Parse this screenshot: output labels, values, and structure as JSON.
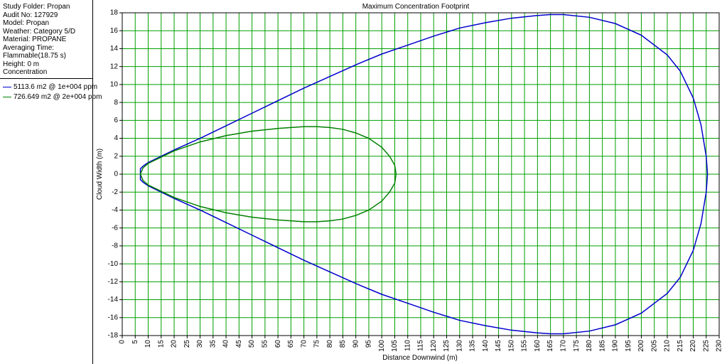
{
  "panel": {
    "info": [
      "Study Folder: Propan",
      "Audit No: 127929",
      "Model: Propan",
      "Weather: Category 5/D",
      "Material: PROPANE",
      "Averaging Time:",
      "Flammable(18.75 s)",
      "Height: 0 m",
      "Concentration"
    ]
  },
  "chart_data": {
    "type": "line",
    "title": "Maximum Concentration Footprint",
    "x_label": "Distance Downwind (m)",
    "y_label": "Cloud Width (m)",
    "xlim": [
      0,
      230
    ],
    "ylim": [
      -18,
      18
    ],
    "xticks": [
      0,
      5,
      10,
      15,
      20,
      25,
      30,
      35,
      40,
      45,
      50,
      55,
      60,
      65,
      70,
      75,
      80,
      85,
      90,
      95,
      100,
      105,
      110,
      115,
      120,
      125,
      130,
      135,
      140,
      145,
      150,
      155,
      160,
      165,
      170,
      175,
      180,
      185,
      190,
      195,
      200,
      205,
      210,
      215,
      220,
      225,
      230
    ],
    "yticks": [
      -18,
      -16,
      -14,
      -12,
      -10,
      -8,
      -6,
      -4,
      -2,
      0,
      2,
      4,
      6,
      8,
      10,
      12,
      14,
      16,
      18
    ],
    "grid": true,
    "grid_color": "#00a000",
    "series": [
      {
        "name": "5113.6 m2 @ 1e+004 ppm",
        "color": "#0000cc",
        "x": [
          7,
          7,
          8,
          10,
          15,
          20,
          30,
          40,
          50,
          60,
          70,
          80,
          90,
          100,
          110,
          120,
          130,
          140,
          150,
          160,
          165,
          170,
          180,
          190,
          200,
          210,
          215,
          220,
          223,
          225,
          225.5,
          225,
          223,
          220,
          215,
          210,
          200,
          190,
          180,
          170,
          165,
          160,
          150,
          140,
          130,
          120,
          110,
          100,
          90,
          80,
          70,
          60,
          50,
          40,
          30,
          20,
          15,
          10,
          8,
          7,
          7
        ],
        "values": [
          0,
          0.6,
          0.9,
          1.3,
          2.0,
          2.7,
          4.0,
          5.4,
          6.8,
          8.2,
          9.6,
          10.9,
          12.2,
          13.4,
          14.4,
          15.4,
          16.3,
          16.9,
          17.4,
          17.7,
          17.8,
          17.8,
          17.5,
          16.8,
          15.5,
          13.3,
          11.5,
          8.5,
          5.5,
          2,
          0,
          -2,
          -5.5,
          -8.5,
          -11.5,
          -13.3,
          -15.5,
          -16.8,
          -17.5,
          -17.8,
          -17.8,
          -17.7,
          -17.4,
          -16.9,
          -16.3,
          -15.4,
          -14.4,
          -13.4,
          -12.2,
          -10.9,
          -9.6,
          -8.2,
          -6.8,
          -5.4,
          -4.0,
          -2.7,
          -2.0,
          -1.3,
          -0.9,
          -0.6,
          0
        ]
      },
      {
        "name": "726.649 m2 @ 2e+004 ppm",
        "color": "#008000",
        "x": [
          7,
          8,
          10,
          20,
          30,
          40,
          50,
          60,
          70,
          75,
          80,
          85,
          90,
          95,
          100,
          103,
          105,
          105.5,
          105,
          103,
          100,
          95,
          90,
          85,
          80,
          75,
          70,
          60,
          50,
          40,
          30,
          20,
          10,
          8,
          7
        ],
        "values": [
          0,
          0.7,
          1.2,
          2.6,
          3.6,
          4.3,
          4.8,
          5.1,
          5.3,
          5.3,
          5.2,
          5.0,
          4.6,
          4.0,
          3.0,
          2.0,
          1.0,
          0,
          -1.0,
          -2.0,
          -3.0,
          -4.0,
          -4.6,
          -5.0,
          -5.2,
          -5.3,
          -5.3,
          -5.1,
          -4.8,
          -4.3,
          -3.6,
          -2.6,
          -1.2,
          -0.7,
          0
        ]
      }
    ]
  }
}
